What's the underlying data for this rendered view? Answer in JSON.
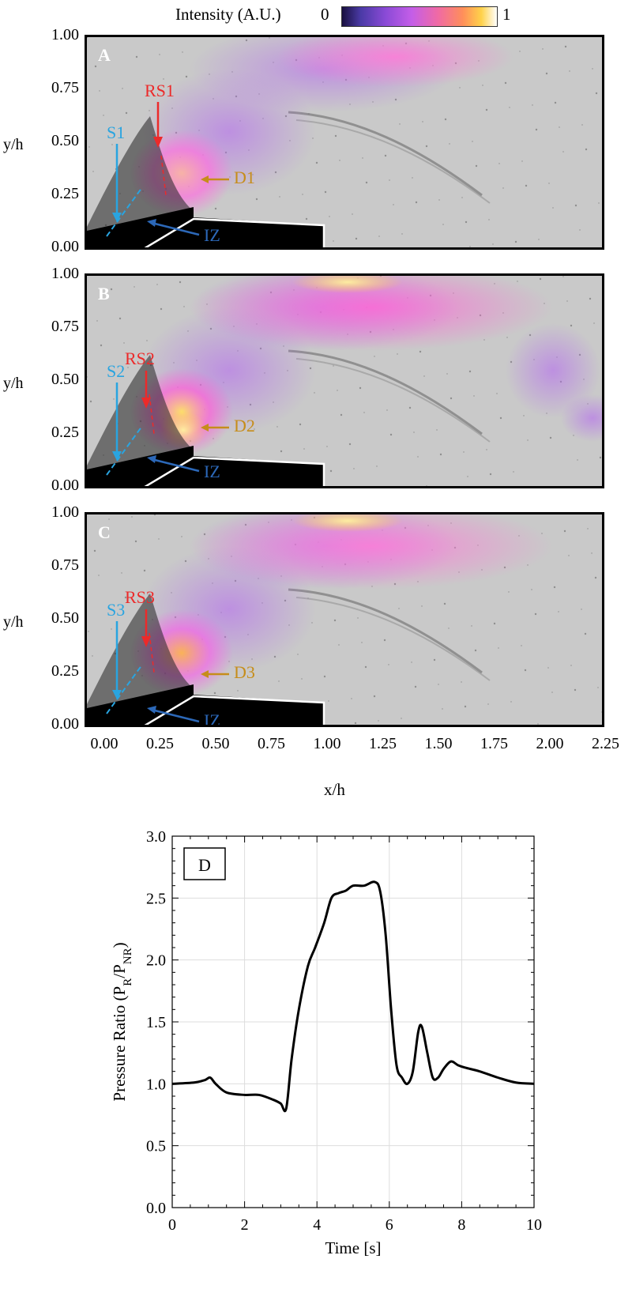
{
  "colorbar": {
    "title": "Intensity (A.U.)",
    "min": "0",
    "max": "1"
  },
  "panels": [
    {
      "letter": "A",
      "s_label": "S1",
      "rs_label": "RS1",
      "d_label": "D1",
      "iz_label": "IZ",
      "plume": "d1"
    },
    {
      "letter": "B",
      "s_label": "S2",
      "rs_label": "RS2",
      "d_label": "D2",
      "iz_label": "IZ",
      "plume": "d2"
    },
    {
      "letter": "C",
      "s_label": "S3",
      "rs_label": "RS3",
      "d_label": "D3",
      "iz_label": "IZ",
      "plume": "d3"
    }
  ],
  "image_axes": {
    "ylabel": "y/h",
    "xlabel": "x/h",
    "yticks": [
      "1.00",
      "0.75",
      "0.50",
      "0.25",
      "0.00"
    ],
    "xticks": [
      "0.00",
      "0.25",
      "0.50",
      "0.75",
      "1.00",
      "1.25",
      "1.50",
      "1.75",
      "2.00",
      "2.25"
    ]
  },
  "chart_data": {
    "type": "line",
    "panel_label": "D",
    "xlabel": "Time [s]",
    "ylabel": "Pressure Ratio (P",
    "ylabel_sub1": "R",
    "ylabel_mid": "/P",
    "ylabel_sub2": "NR",
    "ylabel_end": ")",
    "xlim": [
      0,
      10
    ],
    "ylim": [
      0,
      3.0
    ],
    "xticks": [
      0,
      2,
      4,
      6,
      8,
      10
    ],
    "yticks": [
      "0.0",
      "0.5",
      "1.0",
      "1.5",
      "2.0",
      "2.5",
      "3.0"
    ],
    "ytick_values": [
      0,
      0.5,
      1.0,
      1.5,
      2.0,
      2.5,
      3.0
    ],
    "grid": true,
    "series": [
      {
        "x": [
          0,
          0.6,
          0.9,
          1.05,
          1.2,
          1.5,
          2.0,
          2.4,
          2.8,
          3.0,
          3.15,
          3.3,
          3.5,
          3.75,
          3.95,
          4.2,
          4.4,
          4.6,
          4.8,
          5.0,
          5.3,
          5.6,
          5.75,
          5.9,
          6.05,
          6.2,
          6.35,
          6.5,
          6.65,
          6.8,
          6.9,
          7.05,
          7.2,
          7.35,
          7.5,
          7.7,
          7.9,
          8.1,
          8.5,
          9.0,
          9.5,
          10.0
        ],
        "y": [
          1.0,
          1.01,
          1.03,
          1.05,
          1.0,
          0.93,
          0.91,
          0.91,
          0.87,
          0.84,
          0.8,
          1.2,
          1.6,
          1.95,
          2.1,
          2.3,
          2.5,
          2.54,
          2.56,
          2.6,
          2.6,
          2.63,
          2.55,
          2.2,
          1.6,
          1.15,
          1.05,
          1.0,
          1.1,
          1.42,
          1.46,
          1.25,
          1.05,
          1.05,
          1.12,
          1.18,
          1.15,
          1.13,
          1.1,
          1.05,
          1.01,
          1.0
        ]
      }
    ]
  }
}
